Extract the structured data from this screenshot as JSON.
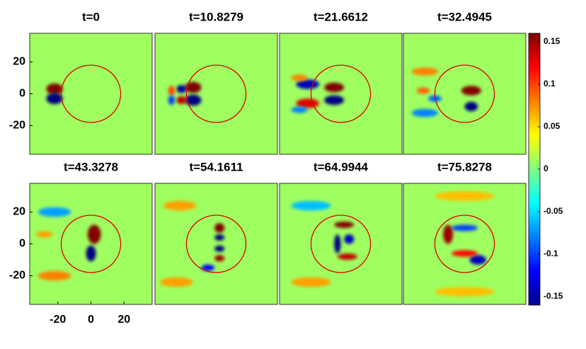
{
  "chart_data": [
    {
      "type": "heatmap",
      "title": "t=0",
      "xlim": [
        -37,
        37
      ],
      "ylim": [
        -38,
        38
      ],
      "yticks": [
        20,
        0,
        -20
      ],
      "background": 0.01,
      "circle": {
        "x": 0,
        "y": 0,
        "r": 18,
        "color": "#e00000"
      },
      "features": [
        {
          "x": -22,
          "y": 3,
          "rx": 5,
          "ry": 3.5,
          "value": 0.16
        },
        {
          "x": -22,
          "y": -3,
          "rx": 5,
          "ry": 3.5,
          "value": -0.16
        }
      ]
    },
    {
      "type": "heatmap",
      "title": "t=10.8279",
      "xlim": [
        -37,
        37
      ],
      "ylim": [
        -38,
        38
      ],
      "background": 0.01,
      "circle": {
        "x": 0,
        "y": 0,
        "r": 18,
        "color": "#e00000"
      },
      "features": [
        {
          "x": -14,
          "y": 4,
          "rx": 5,
          "ry": 3.5,
          "value": 0.16
        },
        {
          "x": -14,
          "y": -4,
          "rx": 5,
          "ry": 3.5,
          "value": -0.16
        },
        {
          "x": -21,
          "y": 3,
          "rx": 3,
          "ry": 2.5,
          "value": -0.15
        },
        {
          "x": -21,
          "y": -4,
          "rx": 3,
          "ry": 2.5,
          "value": 0.14
        },
        {
          "x": -27,
          "y": 2,
          "rx": 2,
          "ry": 3,
          "value": 0.1
        },
        {
          "x": -27,
          "y": -4,
          "rx": 2,
          "ry": 3,
          "value": -0.1
        }
      ]
    },
    {
      "type": "heatmap",
      "title": "t=21.6612",
      "xlim": [
        -37,
        37
      ],
      "ylim": [
        -38,
        38
      ],
      "background": 0.01,
      "circle": {
        "x": 0,
        "y": 0,
        "r": 18,
        "color": "#e00000"
      },
      "features": [
        {
          "x": -4,
          "y": 4,
          "rx": 6,
          "ry": 3,
          "value": 0.16
        },
        {
          "x": -4,
          "y": -4,
          "rx": 6,
          "ry": 3,
          "value": -0.16
        },
        {
          "x": -20,
          "y": 6,
          "rx": 7,
          "ry": 3,
          "value": -0.14
        },
        {
          "x": -20,
          "y": -6,
          "rx": 7,
          "ry": 3,
          "value": 0.13
        },
        {
          "x": -25,
          "y": 10,
          "rx": 5,
          "ry": 2,
          "value": 0.08
        },
        {
          "x": -25,
          "y": -10,
          "rx": 5,
          "ry": 2,
          "value": -0.08
        }
      ]
    },
    {
      "type": "heatmap",
      "title": "t=32.4945",
      "xlim": [
        -37,
        37
      ],
      "ylim": [
        -38,
        38
      ],
      "background": 0.01,
      "circle": {
        "x": 0,
        "y": 0,
        "r": 18,
        "color": "#e00000"
      },
      "features": [
        {
          "x": 4,
          "y": 2,
          "rx": 6,
          "ry": 3,
          "value": 0.16
        },
        {
          "x": 4,
          "y": -8,
          "rx": 4,
          "ry": 3,
          "value": -0.16
        },
        {
          "x": -24,
          "y": 14,
          "rx": 8,
          "ry": 2.5,
          "value": 0.08
        },
        {
          "x": -24,
          "y": -12,
          "rx": 8,
          "ry": 2.5,
          "value": -0.08
        },
        {
          "x": -25,
          "y": 2,
          "rx": 4,
          "ry": 2,
          "value": 0.09
        },
        {
          "x": -18,
          "y": -3,
          "rx": 4,
          "ry": 2,
          "value": -0.09
        }
      ]
    },
    {
      "type": "heatmap",
      "title": "t=43.3278",
      "xlim": [
        -37,
        37
      ],
      "ylim": [
        -38,
        38
      ],
      "xticks": [
        -20,
        0,
        20
      ],
      "yticks": [
        20,
        0,
        -20
      ],
      "background": 0.01,
      "circle": {
        "x": 0,
        "y": 0,
        "r": 18,
        "color": "#e00000"
      },
      "features": [
        {
          "x": 2,
          "y": 6,
          "rx": 4,
          "ry": 6,
          "value": 0.16
        },
        {
          "x": 0,
          "y": -6,
          "rx": 3,
          "ry": 5,
          "value": -0.16
        },
        {
          "x": -22,
          "y": 20,
          "rx": 10,
          "ry": 3,
          "value": -0.07
        },
        {
          "x": -22,
          "y": -20,
          "rx": 10,
          "ry": 3,
          "value": 0.08
        },
        {
          "x": -28,
          "y": 6,
          "rx": 5,
          "ry": 2,
          "value": 0.07
        }
      ]
    },
    {
      "type": "heatmap",
      "title": "t=54.1611",
      "xlim": [
        -37,
        37
      ],
      "ylim": [
        -38,
        38
      ],
      "background": 0.01,
      "circle": {
        "x": 0,
        "y": 0,
        "r": 18,
        "color": "#e00000"
      },
      "features": [
        {
          "x": 2,
          "y": 10,
          "rx": 3,
          "ry": 3,
          "value": 0.16
        },
        {
          "x": 2,
          "y": 4,
          "rx": 3,
          "ry": 2,
          "value": -0.16
        },
        {
          "x": 2,
          "y": -3,
          "rx": 3,
          "ry": 2,
          "value": -0.16
        },
        {
          "x": 2,
          "y": -9,
          "rx": 3,
          "ry": 2,
          "value": 0.15
        },
        {
          "x": -5,
          "y": -15,
          "rx": 4,
          "ry": 2,
          "value": -0.12
        },
        {
          "x": -22,
          "y": 24,
          "rx": 10,
          "ry": 3,
          "value": 0.07
        },
        {
          "x": -24,
          "y": -24,
          "rx": 10,
          "ry": 3,
          "value": 0.07
        }
      ]
    },
    {
      "type": "heatmap",
      "title": "t=64.9944",
      "xlim": [
        -37,
        37
      ],
      "ylim": [
        -38,
        38
      ],
      "background": 0.01,
      "circle": {
        "x": 0,
        "y": 0,
        "r": 18,
        "color": "#e00000"
      },
      "features": [
        {
          "x": 2,
          "y": 12,
          "rx": 6,
          "ry": 2,
          "value": 0.16
        },
        {
          "x": -2,
          "y": 0,
          "rx": 2,
          "ry": 6,
          "value": -0.16
        },
        {
          "x": 5,
          "y": 3,
          "rx": 3,
          "ry": 3,
          "value": -0.14
        },
        {
          "x": 4,
          "y": -8,
          "rx": 6,
          "ry": 2,
          "value": 0.14
        },
        {
          "x": -18,
          "y": 24,
          "rx": 12,
          "ry": 3,
          "value": -0.06
        },
        {
          "x": -18,
          "y": -24,
          "rx": 12,
          "ry": 3,
          "value": 0.07
        }
      ]
    },
    {
      "type": "heatmap",
      "title": "t=75.8278",
      "xlim": [
        -37,
        37
      ],
      "ylim": [
        -38,
        38
      ],
      "background": 0.01,
      "circle": {
        "x": 0,
        "y": 0,
        "r": 18,
        "color": "#e00000"
      },
      "features": [
        {
          "x": -10,
          "y": 6,
          "rx": 3,
          "ry": 6,
          "value": 0.15
        },
        {
          "x": 8,
          "y": -10,
          "rx": 5,
          "ry": 3,
          "value": -0.14
        },
        {
          "x": 0,
          "y": 10,
          "rx": 8,
          "ry": 2,
          "value": -0.1
        },
        {
          "x": 0,
          "y": -6,
          "rx": 8,
          "ry": 2,
          "value": 0.12
        },
        {
          "x": 0,
          "y": 30,
          "rx": 18,
          "ry": 3,
          "value": 0.06
        },
        {
          "x": 0,
          "y": -30,
          "rx": 18,
          "ry": 3,
          "value": 0.06
        }
      ]
    },
    {
      "type": "colorbar",
      "clim": [
        -0.16,
        0.16
      ],
      "ticks": [
        0.15,
        0.1,
        0.05,
        0,
        -0.05,
        -0.1,
        -0.15
      ]
    }
  ]
}
